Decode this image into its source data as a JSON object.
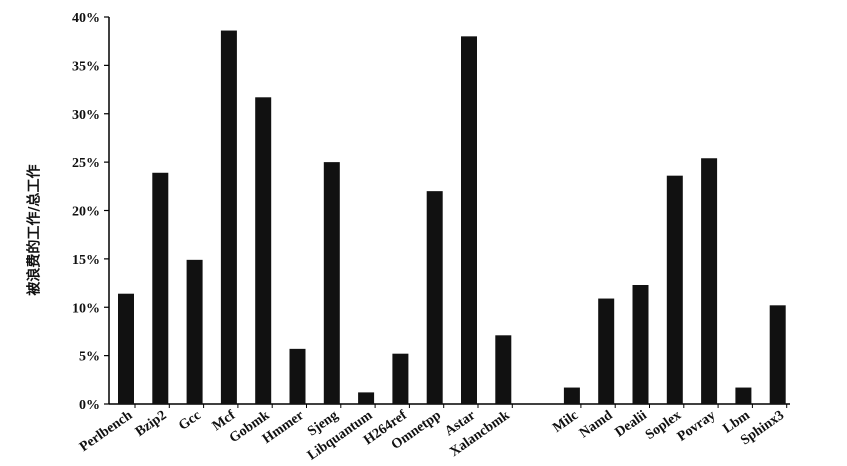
{
  "chart_data": {
    "type": "bar",
    "title": "",
    "xlabel": "",
    "ylabel": "被浪费的工作/总工作",
    "ylim": [
      0,
      40
    ],
    "yticks": [
      "0%",
      "5%",
      "10%",
      "15%",
      "20%",
      "25%",
      "30%",
      "35%",
      "40%"
    ],
    "ytick_values": [
      0,
      5,
      10,
      15,
      20,
      25,
      30,
      35,
      40
    ],
    "groups": [
      {
        "categories": [
          "Perlbench",
          "Bzip2",
          "Gcc",
          "Mcf",
          "Gobmk",
          "Hmmer",
          "Sjeng",
          "Libquantum",
          "H264ref",
          "Omnetpp",
          "Astar",
          "Xalancbmk"
        ],
        "values": [
          11.4,
          23.9,
          14.9,
          38.6,
          31.7,
          5.7,
          25.0,
          1.2,
          5.2,
          22.0,
          38.0,
          7.1
        ]
      },
      {
        "categories": [
          "Milc",
          "Namd",
          "Dealii",
          "Soplex",
          "Povray",
          "Lbm",
          "Sphinx3"
        ],
        "values": [
          1.7,
          10.9,
          12.3,
          23.6,
          25.4,
          1.7,
          10.2
        ]
      }
    ],
    "bar_color": "#111111",
    "grid": false,
    "legend": "none"
  }
}
